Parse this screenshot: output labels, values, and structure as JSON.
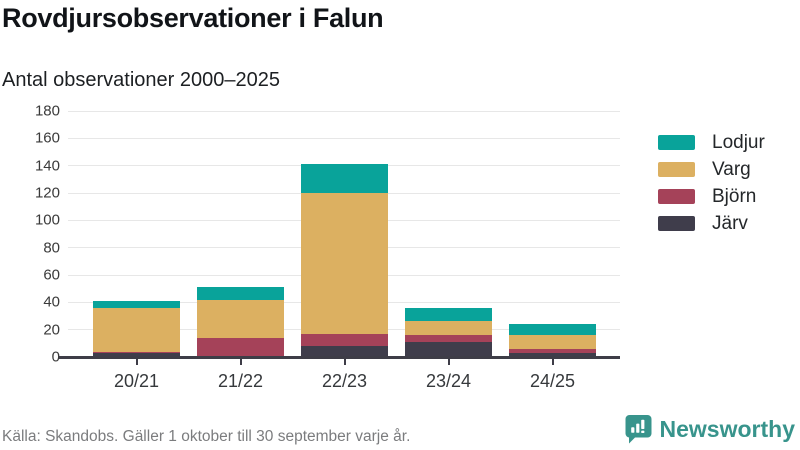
{
  "header": {
    "title": "Rovdjursobservationer i Falun",
    "subtitle": "Antal observationer 2000–2025"
  },
  "chart_data": {
    "type": "bar",
    "stacked": true,
    "title": "Rovdjursobservationer i Falun",
    "subtitle": "Antal observationer 2000–2025",
    "categories": [
      "20/21",
      "21/22",
      "22/23",
      "23/24",
      "24/25"
    ],
    "series": [
      {
        "name": "Järv",
        "color": "#3f3d4b",
        "values": [
          3,
          1,
          8,
          11,
          3
        ]
      },
      {
        "name": "Björn",
        "color": "#a54259",
        "values": [
          1,
          13,
          9,
          5,
          3
        ]
      },
      {
        "name": "Varg",
        "color": "#dcb061",
        "values": [
          32,
          28,
          103,
          10,
          10
        ]
      },
      {
        "name": "Lodjur",
        "color": "#09a39a",
        "values": [
          5,
          9,
          21,
          10,
          8
        ]
      }
    ],
    "legend_order": [
      "Lodjur",
      "Varg",
      "Björn",
      "Järv"
    ],
    "legend_position": "right",
    "ylim": [
      0,
      180
    ],
    "yticks": [
      0,
      20,
      40,
      60,
      80,
      100,
      120,
      140,
      160,
      180
    ],
    "grid": "horizontal",
    "xlabel": "",
    "ylabel": ""
  },
  "footer": {
    "source": "Källa: Skandobs. Gäller 1 oktober till 30 september varje år.",
    "brand": "Newsworthy"
  },
  "colors": {
    "accent_teal": "#09a39a",
    "gold": "#dcb061",
    "maroon": "#a54259",
    "dark_navy": "#3f3d4b",
    "axis": "#3e3d47",
    "gridline": "#e7e7e7",
    "brand_teal": "#38948c"
  }
}
